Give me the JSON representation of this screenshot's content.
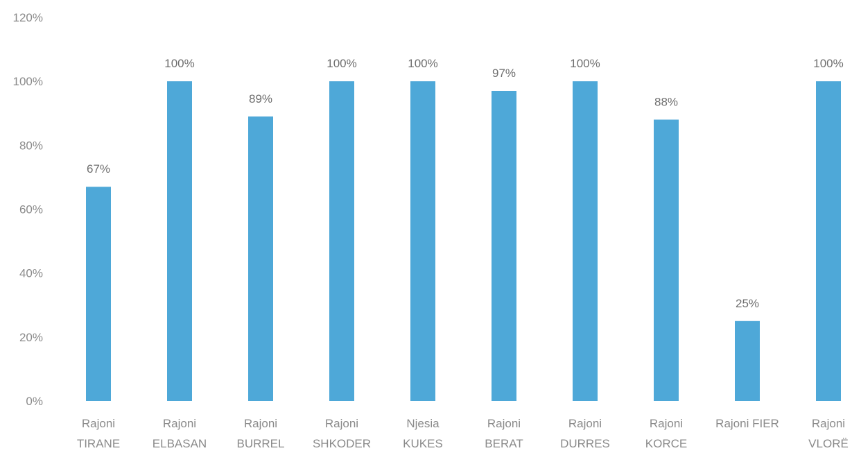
{
  "chart_data": {
    "type": "bar",
    "title": "",
    "xlabel": "",
    "ylabel": "",
    "ylim": [
      0,
      120
    ],
    "yticks": [
      "0%",
      "20%",
      "40%",
      "60%",
      "80%",
      "100%",
      "120%"
    ],
    "ytick_values": [
      0,
      20,
      40,
      60,
      80,
      100,
      120
    ],
    "grid": false,
    "bar_color": "#4ea8d8",
    "categories": [
      [
        "Rajoni",
        "TIRANE"
      ],
      [
        "Rajoni",
        "ELBASAN"
      ],
      [
        "Rajoni",
        "BURREL"
      ],
      [
        "Rajoni",
        "SHKODER"
      ],
      [
        "Njesia",
        "KUKES"
      ],
      [
        "Rajoni",
        "BERAT"
      ],
      [
        "Rajoni",
        "DURRES"
      ],
      [
        "Rajoni",
        "KORCE"
      ],
      [
        "Rajoni FIER"
      ],
      [
        "Rajoni",
        "VLORË"
      ]
    ],
    "values": [
      67,
      100,
      89,
      100,
      100,
      97,
      100,
      88,
      25,
      100
    ],
    "data_labels": [
      "67%",
      "100%",
      "89%",
      "100%",
      "100%",
      "97%",
      "100%",
      "88%",
      "25%",
      "100%"
    ]
  }
}
